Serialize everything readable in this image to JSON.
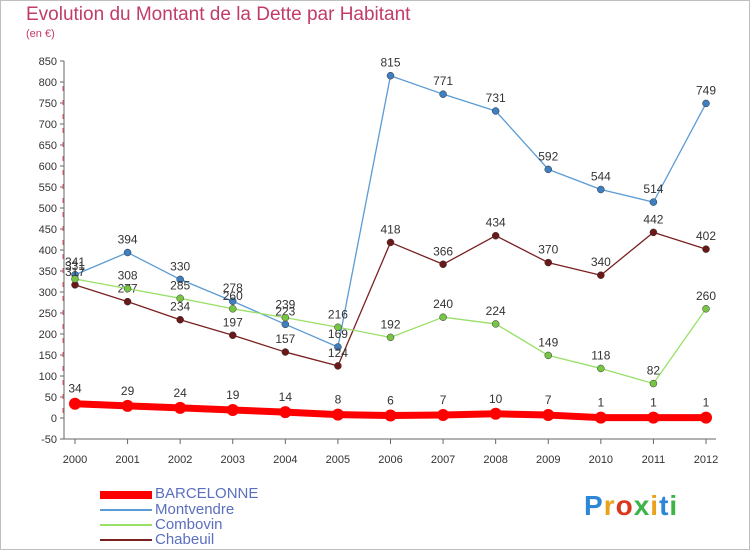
{
  "header": {
    "title": "Evolution du Montant de la Dette par Habitant",
    "subtitle": "(en €)"
  },
  "logo": {
    "text": "Proxiti",
    "colors": [
      "#2e86d6",
      "#e8a21c",
      "#d9381e",
      "#3db34a",
      "#e8a21c",
      "#2e86d6",
      "#3db34a"
    ]
  },
  "chart_data": {
    "type": "line",
    "categories": [
      "2000",
      "2001",
      "2002",
      "2003",
      "2004",
      "2005",
      "2006",
      "2007",
      "2008",
      "2009",
      "2010",
      "2011",
      "2012"
    ],
    "ylim": [
      -50,
      850
    ],
    "yticks": [
      -50,
      0,
      50,
      100,
      150,
      200,
      250,
      300,
      350,
      400,
      450,
      500,
      550,
      600,
      650,
      700,
      750,
      800,
      850
    ],
    "grid": false,
    "legend_position": "bottom-left",
    "series": [
      {
        "name": "BARCELONNE",
        "color": "#ff0000",
        "values": [
          34,
          29,
          24,
          19,
          14,
          8,
          6,
          7,
          10,
          7,
          1,
          1,
          1
        ],
        "labels": [
          "34",
          "29",
          "24",
          "19",
          "14",
          "8",
          "6",
          "7",
          "10",
          "7",
          "1",
          "1",
          "1"
        ],
        "thick": true
      },
      {
        "name": "Montvendre",
        "color": "#5b9bd5",
        "dot": "#3e7fc1",
        "values": [
          341,
          394,
          330,
          278,
          223,
          169,
          815,
          771,
          731,
          592,
          544,
          514,
          749
        ],
        "labels": [
          "341",
          "394",
          "330",
          "278",
          "223",
          "169",
          "815",
          "771",
          "731",
          "592",
          "544",
          "514",
          "749"
        ]
      },
      {
        "name": "Combovin",
        "color": "#99e068",
        "dot": "#77c544",
        "values": [
          331,
          308,
          285,
          260,
          239,
          216,
          192,
          240,
          224,
          149,
          118,
          82,
          260
        ],
        "labels": [
          "331",
          "308",
          "285",
          "260",
          "239",
          "216",
          "192",
          "240",
          "224",
          "149",
          "118",
          "82",
          "260"
        ]
      },
      {
        "name": "Chabeuil",
        "color": "#7a2020",
        "dot": "#6a1818",
        "values": [
          317,
          277,
          234,
          197,
          157,
          124,
          418,
          366,
          434,
          370,
          340,
          442,
          402
        ],
        "labels": [
          "317",
          "277",
          "234",
          "197",
          "157",
          "124",
          "418",
          "366",
          "434",
          "370",
          "340",
          "442",
          "402"
        ]
      }
    ]
  }
}
